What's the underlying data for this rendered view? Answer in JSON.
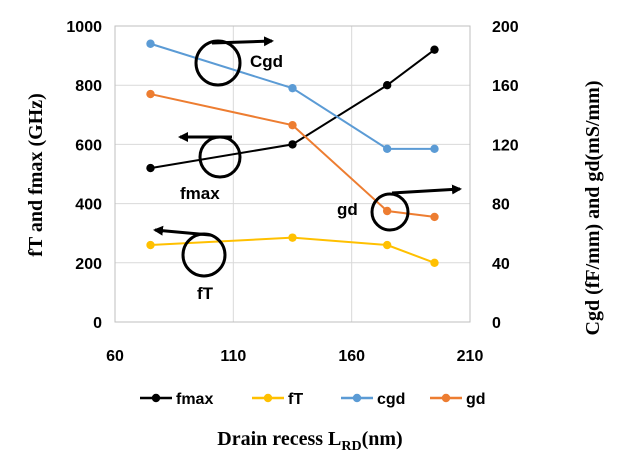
{
  "chart_data": {
    "type": "line",
    "xlabel": "Drain recess L",
    "xlabel_sub": "RD",
    "xlabel_unit": "(nm)",
    "ylabel_left": "fT and fmax (GHz)",
    "ylabel_right": "Cgd (fF/mm) and gd(mS/mm)",
    "xlim": [
      60,
      210
    ],
    "xticks": [
      "60",
      "110",
      "160",
      "210"
    ],
    "ylim_left": [
      0,
      1000
    ],
    "yticks_left": [
      "0",
      "200",
      "400",
      "600",
      "800",
      "1000"
    ],
    "ylim_right": [
      0,
      200
    ],
    "yticks_right": [
      "0",
      "40",
      "80",
      "120",
      "160",
      "200"
    ],
    "gridlines": true,
    "legend_position": "bottom",
    "series": [
      {
        "name": "fmax",
        "axis": "left",
        "color": "#000000",
        "x": [
          75,
          135,
          175,
          195
        ],
        "y": [
          520,
          600,
          800,
          920
        ]
      },
      {
        "name": "fT",
        "axis": "left",
        "color": "#FFC000",
        "x": [
          75,
          135,
          175,
          195
        ],
        "y": [
          260,
          285,
          260,
          200
        ]
      },
      {
        "name": "cgd",
        "axis": "right",
        "color": "#5B9BD5",
        "x": [
          75,
          135,
          175,
          195
        ],
        "y": [
          188,
          158,
          117,
          117
        ]
      },
      {
        "name": "gd",
        "axis": "right",
        "color": "#ED7D31",
        "x": [
          75,
          135,
          175,
          195
        ],
        "y": [
          154,
          133,
          75,
          71
        ]
      }
    ],
    "annotations": [
      "Cgd",
      "fmax",
      "gd",
      "fT"
    ]
  }
}
